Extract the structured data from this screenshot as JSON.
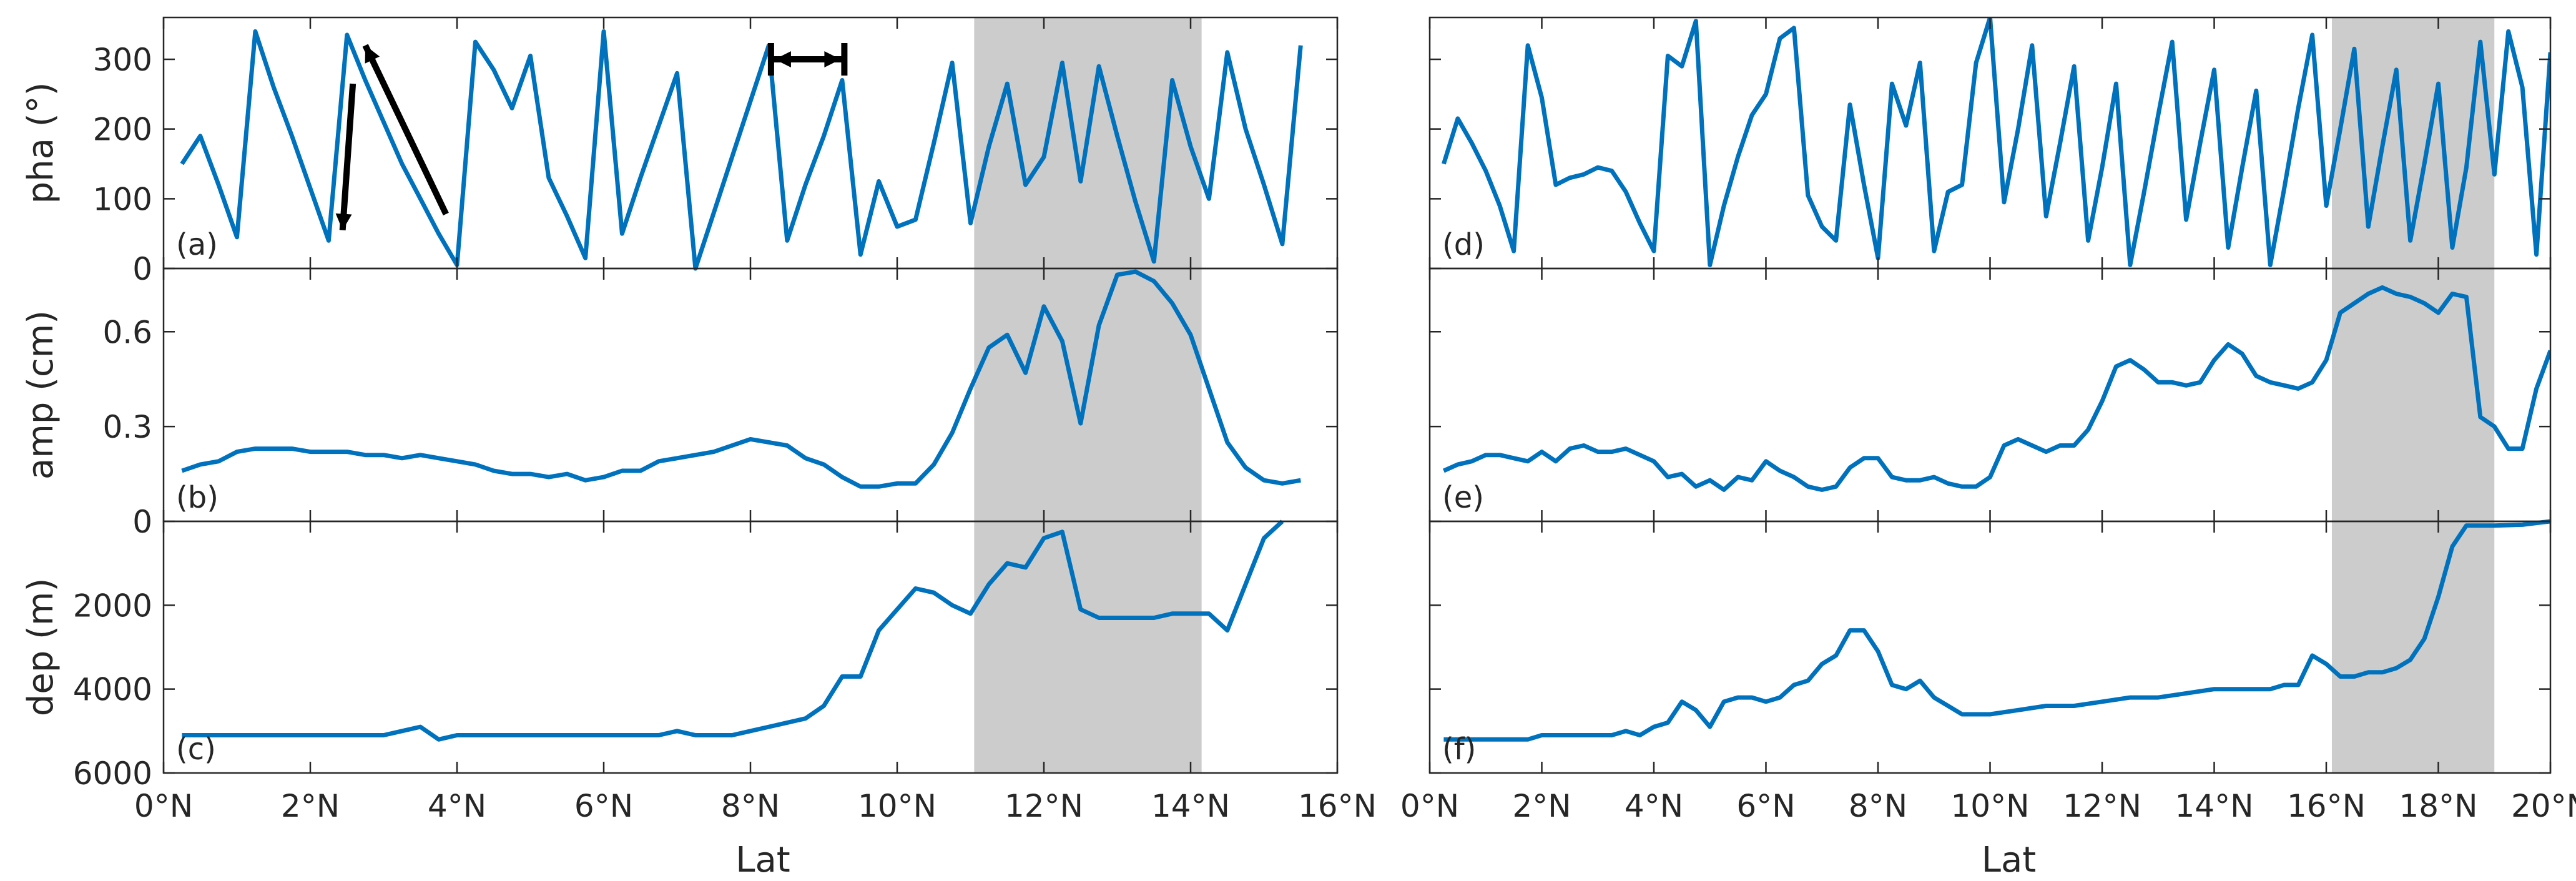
{
  "chart_data": [
    {
      "panel": "(a)",
      "type": "line",
      "xlabel": "",
      "ylabel": "pha (°)",
      "xlim": [
        0,
        16
      ],
      "ylim": [
        0,
        360
      ],
      "yticks": [
        0,
        100,
        200,
        300
      ],
      "ytick_labels": [
        "0",
        "100",
        "200",
        "300"
      ],
      "x_tick_labels_shown": false,
      "shaded_region": [
        11.05,
        14.15
      ],
      "annotations": [
        "down-arrow",
        "up-arrow",
        "horizontal-double-arrow"
      ],
      "x": [
        0.25,
        0.5,
        0.75,
        1.0,
        1.25,
        1.5,
        1.75,
        2.0,
        2.25,
        2.5,
        2.75,
        3.0,
        3.25,
        3.5,
        3.75,
        4.0,
        4.25,
        4.5,
        4.75,
        5.0,
        5.25,
        5.5,
        5.75,
        6.0,
        6.25,
        6.5,
        6.75,
        7.0,
        7.25,
        7.5,
        7.75,
        8.0,
        8.25,
        8.5,
        8.75,
        9.0,
        9.25,
        9.5,
        9.75,
        10.0,
        10.25,
        10.5,
        10.75,
        11.0,
        11.25,
        11.5,
        11.75,
        12.0,
        12.25,
        12.5,
        12.75,
        13.0,
        13.25,
        13.5,
        13.75,
        14.0,
        14.25,
        14.5,
        14.75,
        15.0,
        15.25,
        15.5
      ],
      "y": [
        150,
        190,
        120,
        45,
        340,
        260,
        190,
        115,
        40,
        335,
        270,
        210,
        150,
        100,
        50,
        5,
        325,
        285,
        230,
        305,
        130,
        75,
        15,
        340,
        50,
        130,
        205,
        280,
        0,
        80,
        160,
        240,
        320,
        40,
        120,
        190,
        270,
        20,
        125,
        60,
        70,
        180,
        295,
        65,
        175,
        265,
        120,
        160,
        295,
        125,
        290,
        190,
        95,
        10,
        270,
        175,
        100,
        310,
        200,
        120,
        35,
        320
      ]
    },
    {
      "panel": "(b)",
      "type": "line",
      "xlabel": "",
      "ylabel": "amp (cm)",
      "xlim": [
        0,
        16
      ],
      "ylim": [
        0,
        0.8
      ],
      "yticks": [
        0,
        0.3,
        0.6
      ],
      "ytick_labels": [
        "0",
        "0.3",
        "0.6"
      ],
      "x_tick_labels_shown": false,
      "shaded_region": [
        11.05,
        14.15
      ],
      "x": [
        0.25,
        0.5,
        0.75,
        1.0,
        1.25,
        1.5,
        1.75,
        2.0,
        2.25,
        2.5,
        2.75,
        3.0,
        3.25,
        3.5,
        3.75,
        4.0,
        4.25,
        4.5,
        4.75,
        5.0,
        5.25,
        5.5,
        5.75,
        6.0,
        6.25,
        6.5,
        6.75,
        7.0,
        7.25,
        7.5,
        7.75,
        8.0,
        8.25,
        8.5,
        8.75,
        9.0,
        9.25,
        9.5,
        9.75,
        10.0,
        10.25,
        10.5,
        10.75,
        11.0,
        11.25,
        11.5,
        11.75,
        12.0,
        12.25,
        12.5,
        12.75,
        13.0,
        13.25,
        13.5,
        13.75,
        14.0,
        14.25,
        14.5,
        14.75,
        15.0,
        15.25,
        15.5
      ],
      "y": [
        0.16,
        0.18,
        0.19,
        0.22,
        0.23,
        0.23,
        0.23,
        0.22,
        0.22,
        0.22,
        0.21,
        0.21,
        0.2,
        0.21,
        0.2,
        0.19,
        0.18,
        0.16,
        0.15,
        0.15,
        0.14,
        0.15,
        0.13,
        0.14,
        0.16,
        0.16,
        0.19,
        0.2,
        0.21,
        0.22,
        0.24,
        0.26,
        0.25,
        0.24,
        0.2,
        0.18,
        0.14,
        0.11,
        0.11,
        0.12,
        0.12,
        0.18,
        0.28,
        0.42,
        0.55,
        0.59,
        0.47,
        0.68,
        0.57,
        0.31,
        0.62,
        0.78,
        0.79,
        0.76,
        0.69,
        0.59,
        0.42,
        0.25,
        0.17,
        0.13,
        0.12,
        0.13
      ]
    },
    {
      "panel": "(c)",
      "type": "line",
      "xlabel": "Lat",
      "ylabel": "dep (m)",
      "xlim": [
        0,
        16
      ],
      "ylim": [
        6000,
        0
      ],
      "y_reversed": true,
      "yticks": [
        2000,
        4000,
        6000
      ],
      "ytick_labels": [
        "2000",
        "4000",
        "6000"
      ],
      "xticks": [
        0,
        2,
        4,
        6,
        8,
        10,
        12,
        14,
        16
      ],
      "xtick_labels": [
        "0°N",
        "2°N",
        "4°N",
        "6°N",
        "8°N",
        "10°N",
        "12°N",
        "14°N",
        "16°N"
      ],
      "shaded_region": [
        11.05,
        14.15
      ],
      "x": [
        0.25,
        0.5,
        1.0,
        1.5,
        2.0,
        2.5,
        3.0,
        3.25,
        3.5,
        3.75,
        4.0,
        4.5,
        5.0,
        5.5,
        6.0,
        6.5,
        6.75,
        7.0,
        7.25,
        7.5,
        7.75,
        8.0,
        8.25,
        8.5,
        8.75,
        9.0,
        9.25,
        9.5,
        9.75,
        10.0,
        10.25,
        10.5,
        10.75,
        11.0,
        11.25,
        11.5,
        11.75,
        12.0,
        12.25,
        12.5,
        12.75,
        13.0,
        13.25,
        13.5,
        13.75,
        14.0,
        14.25,
        14.5,
        14.75,
        15.0,
        15.25
      ],
      "y": [
        5100,
        5100,
        5100,
        5100,
        5100,
        5100,
        5100,
        5000,
        4900,
        5200,
        5100,
        5100,
        5100,
        5100,
        5100,
        5100,
        5100,
        5000,
        5100,
        5100,
        5100,
        5000,
        4900,
        4800,
        4700,
        4400,
        3700,
        3700,
        2600,
        2100,
        1600,
        1700,
        2000,
        2200,
        1500,
        1000,
        1100,
        400,
        250,
        2100,
        2300,
        2300,
        2300,
        2300,
        2200,
        2200,
        2200,
        2600,
        1500,
        400,
        0
      ]
    },
    {
      "panel": "(d)",
      "type": "line",
      "xlabel": "",
      "ylabel": "",
      "xlim": [
        0,
        20
      ],
      "ylim": [
        0,
        360
      ],
      "yticks": [
        0,
        100,
        200,
        300
      ],
      "ytick_labels": [],
      "x_tick_labels_shown": false,
      "shaded_region": [
        16.1,
        19.0
      ],
      "x": [
        0.25,
        0.5,
        0.75,
        1.0,
        1.25,
        1.5,
        1.75,
        2.0,
        2.25,
        2.5,
        2.75,
        3.0,
        3.25,
        3.5,
        3.75,
        4.0,
        4.25,
        4.5,
        4.75,
        5.0,
        5.25,
        5.5,
        5.75,
        6.0,
        6.25,
        6.5,
        6.75,
        7.0,
        7.25,
        7.5,
        7.75,
        8.0,
        8.25,
        8.5,
        8.75,
        9.0,
        9.25,
        9.5,
        9.75,
        10.0,
        10.25,
        10.5,
        10.75,
        11.0,
        11.25,
        11.5,
        11.75,
        12.0,
        12.25,
        12.5,
        12.75,
        13.0,
        13.25,
        13.5,
        13.75,
        14.0,
        14.25,
        14.5,
        14.75,
        15.0,
        15.25,
        15.5,
        15.75,
        16.0,
        16.25,
        16.5,
        16.75,
        17.0,
        17.25,
        17.5,
        17.75,
        18.0,
        18.25,
        18.5,
        18.75,
        19.0,
        19.25,
        19.5,
        19.75,
        20.0
      ],
      "y": [
        150,
        215,
        180,
        140,
        90,
        25,
        320,
        245,
        120,
        130,
        135,
        145,
        140,
        110,
        65,
        25,
        305,
        290,
        355,
        5,
        90,
        160,
        220,
        250,
        330,
        345,
        105,
        60,
        40,
        235,
        120,
        15,
        265,
        205,
        295,
        25,
        110,
        120,
        295,
        360,
        95,
        200,
        320,
        75,
        180,
        290,
        40,
        145,
        265,
        5,
        110,
        220,
        325,
        70,
        180,
        285,
        30,
        145,
        255,
        5,
        115,
        230,
        335,
        90,
        200,
        315,
        60,
        175,
        285,
        40,
        150,
        265,
        30,
        145,
        325,
        135,
        340,
        260,
        20,
        310
      ]
    },
    {
      "panel": "(e)",
      "type": "line",
      "xlabel": "",
      "ylabel": "",
      "xlim": [
        0,
        20
      ],
      "ylim": [
        0,
        0.8
      ],
      "yticks": [
        0,
        0.3,
        0.6
      ],
      "ytick_labels": [],
      "x_tick_labels_shown": false,
      "shaded_region": [
        16.1,
        19.0
      ],
      "x": [
        0.25,
        0.5,
        0.75,
        1.0,
        1.25,
        1.5,
        1.75,
        2.0,
        2.25,
        2.5,
        2.75,
        3.0,
        3.25,
        3.5,
        3.75,
        4.0,
        4.25,
        4.5,
        4.75,
        5.0,
        5.25,
        5.5,
        5.75,
        6.0,
        6.25,
        6.5,
        6.75,
        7.0,
        7.25,
        7.5,
        7.75,
        8.0,
        8.25,
        8.5,
        8.75,
        9.0,
        9.25,
        9.5,
        9.75,
        10.0,
        10.25,
        10.5,
        10.75,
        11.0,
        11.25,
        11.5,
        11.75,
        12.0,
        12.25,
        12.5,
        12.75,
        13.0,
        13.25,
        13.5,
        13.75,
        14.0,
        14.25,
        14.5,
        14.75,
        15.0,
        15.25,
        15.5,
        15.75,
        16.0,
        16.25,
        16.5,
        16.75,
        17.0,
        17.25,
        17.5,
        17.75,
        18.0,
        18.25,
        18.5,
        18.75,
        19.0,
        19.25,
        19.5,
        19.75,
        20.0
      ],
      "y": [
        0.16,
        0.18,
        0.19,
        0.21,
        0.21,
        0.2,
        0.19,
        0.22,
        0.19,
        0.23,
        0.24,
        0.22,
        0.22,
        0.23,
        0.21,
        0.19,
        0.14,
        0.15,
        0.11,
        0.13,
        0.1,
        0.14,
        0.13,
        0.19,
        0.16,
        0.14,
        0.11,
        0.1,
        0.11,
        0.17,
        0.2,
        0.2,
        0.14,
        0.13,
        0.13,
        0.14,
        0.12,
        0.11,
        0.11,
        0.14,
        0.24,
        0.26,
        0.24,
        0.22,
        0.24,
        0.24,
        0.29,
        0.38,
        0.49,
        0.51,
        0.48,
        0.44,
        0.44,
        0.43,
        0.44,
        0.51,
        0.56,
        0.53,
        0.46,
        0.44,
        0.43,
        0.42,
        0.44,
        0.51,
        0.66,
        0.69,
        0.72,
        0.74,
        0.72,
        0.71,
        0.69,
        0.66,
        0.72,
        0.71,
        0.33,
        0.3,
        0.23,
        0.23,
        0.42,
        0.54
      ]
    },
    {
      "panel": "(f)",
      "type": "line",
      "xlabel": "Lat",
      "ylabel": "",
      "xlim": [
        0,
        20
      ],
      "ylim": [
        6000,
        0
      ],
      "y_reversed": true,
      "yticks": [
        2000,
        4000,
        6000
      ],
      "ytick_labels": [],
      "xticks": [
        0,
        2,
        4,
        6,
        8,
        10,
        12,
        14,
        16,
        18,
        20
      ],
      "xtick_labels": [
        "0°N",
        "2°N",
        "4°N",
        "6°N",
        "8°N",
        "10°N",
        "12°N",
        "14°N",
        "16°N",
        "18°N",
        "20°N"
      ],
      "shaded_region": [
        16.1,
        19.0
      ],
      "x": [
        0.25,
        0.5,
        1.0,
        1.5,
        1.75,
        2.0,
        2.5,
        3.0,
        3.25,
        3.5,
        3.75,
        4.0,
        4.25,
        4.5,
        4.75,
        5.0,
        5.25,
        5.5,
        5.75,
        6.0,
        6.25,
        6.5,
        6.75,
        7.0,
        7.25,
        7.5,
        7.75,
        8.0,
        8.25,
        8.5,
        8.75,
        9.0,
        9.25,
        9.5,
        9.75,
        10.0,
        10.5,
        11.0,
        11.5,
        12.0,
        12.5,
        13.0,
        13.5,
        14.0,
        14.5,
        15.0,
        15.25,
        15.5,
        15.75,
        16.0,
        16.25,
        16.5,
        16.75,
        17.0,
        17.25,
        17.5,
        17.75,
        18.0,
        18.25,
        18.5,
        18.75,
        19.0,
        19.5,
        20.0
      ],
      "y": [
        5200,
        5200,
        5200,
        5200,
        5200,
        5100,
        5100,
        5100,
        5100,
        5000,
        5100,
        4900,
        4800,
        4300,
        4500,
        4900,
        4300,
        4200,
        4200,
        4300,
        4200,
        3900,
        3800,
        3400,
        3200,
        2600,
        2600,
        3100,
        3900,
        4000,
        3800,
        4200,
        4400,
        4600,
        4600,
        4600,
        4500,
        4400,
        4400,
        4300,
        4200,
        4200,
        4100,
        4000,
        4000,
        4000,
        3900,
        3900,
        3200,
        3400,
        3700,
        3700,
        3600,
        3600,
        3500,
        3300,
        2800,
        1800,
        600,
        100,
        100,
        100,
        80,
        0
      ]
    }
  ]
}
